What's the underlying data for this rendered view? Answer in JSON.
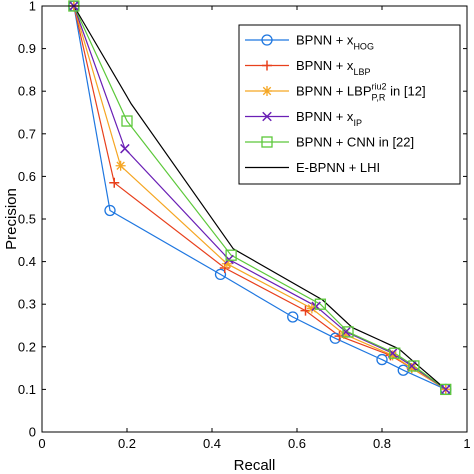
{
  "chart_data": {
    "type": "line",
    "title": "",
    "xlabel": "Recall",
    "ylabel": "Precision",
    "xlim": [
      0,
      1
    ],
    "ylim": [
      0,
      1
    ],
    "xticks": [
      0,
      0.2,
      0.4,
      0.6,
      0.8,
      1
    ],
    "yticks": [
      0,
      0.1,
      0.2,
      0.3,
      0.4,
      0.5,
      0.6,
      0.7,
      0.8,
      0.9,
      1
    ],
    "xtick_labels": [
      "0",
      "0.2",
      "0.4",
      "0.6",
      "0.8",
      "1"
    ],
    "ytick_labels": [
      "0",
      "0.1",
      "0.2",
      "0.3",
      "0.4",
      "0.5",
      "0.6",
      "0.7",
      "0.8",
      "0.9",
      "1"
    ],
    "grid": false,
    "legend_position": "top-right",
    "series": [
      {
        "name": "BPNN + xHOG",
        "legend": {
          "main": "BPNN + x",
          "sub": "HOG",
          "sup": "",
          "tail": ""
        },
        "color": "#1f77e0",
        "marker": "circle",
        "x": [
          0.075,
          0.16,
          0.42,
          0.59,
          0.69,
          0.8,
          0.85,
          0.95
        ],
        "y": [
          1.0,
          0.52,
          0.37,
          0.27,
          0.22,
          0.17,
          0.145,
          0.1
        ]
      },
      {
        "name": "BPNN + xLBP",
        "legend": {
          "main": "BPNN + x",
          "sub": "LBP",
          "sup": "",
          "tail": ""
        },
        "color": "#e8401c",
        "marker": "plus",
        "x": [
          0.075,
          0.17,
          0.43,
          0.62,
          0.7,
          0.82,
          0.87,
          0.95
        ],
        "y": [
          1.0,
          0.585,
          0.385,
          0.285,
          0.225,
          0.18,
          0.15,
          0.1
        ]
      },
      {
        "name": "BPNN + LBPriu2P,R in [12]",
        "legend": {
          "main": "BPNN + LBP",
          "sub": "P,R",
          "sup": "riu2",
          "tail": " in [12]"
        },
        "color": "#f5a623",
        "marker": "asterisk",
        "x": [
          0.075,
          0.185,
          0.435,
          0.635,
          0.71,
          0.825,
          0.87,
          0.95
        ],
        "y": [
          1.0,
          0.625,
          0.395,
          0.29,
          0.23,
          0.18,
          0.15,
          0.1
        ]
      },
      {
        "name": "BPNN + xIP",
        "legend": {
          "main": "BPNN + x",
          "sub": "IP",
          "sup": "",
          "tail": ""
        },
        "color": "#6a1fb5",
        "marker": "x",
        "x": [
          0.075,
          0.195,
          0.44,
          0.645,
          0.715,
          0.825,
          0.87,
          0.95
        ],
        "y": [
          1.0,
          0.665,
          0.405,
          0.295,
          0.235,
          0.185,
          0.155,
          0.1
        ]
      },
      {
        "name": "BPNN + CNN in [22]",
        "legend": {
          "main": "BPNN + CNN in [22]",
          "sub": "",
          "sup": "",
          "tail": ""
        },
        "color": "#5cc83a",
        "marker": "square",
        "x": [
          0.075,
          0.2,
          0.445,
          0.655,
          0.72,
          0.83,
          0.875,
          0.95
        ],
        "y": [
          1.0,
          0.73,
          0.415,
          0.3,
          0.235,
          0.185,
          0.155,
          0.1
        ]
      },
      {
        "name": "E-BPNN + LHI",
        "legend": {
          "main": "E-BPNN + LHI",
          "sub": "",
          "sup": "",
          "tail": ""
        },
        "color": "#000000",
        "marker": "none",
        "x": [
          0.075,
          0.21,
          0.45,
          0.66,
          0.73,
          0.84,
          0.88,
          0.95
        ],
        "y": [
          1.0,
          0.77,
          0.43,
          0.31,
          0.245,
          0.195,
          0.16,
          0.1
        ]
      }
    ]
  }
}
